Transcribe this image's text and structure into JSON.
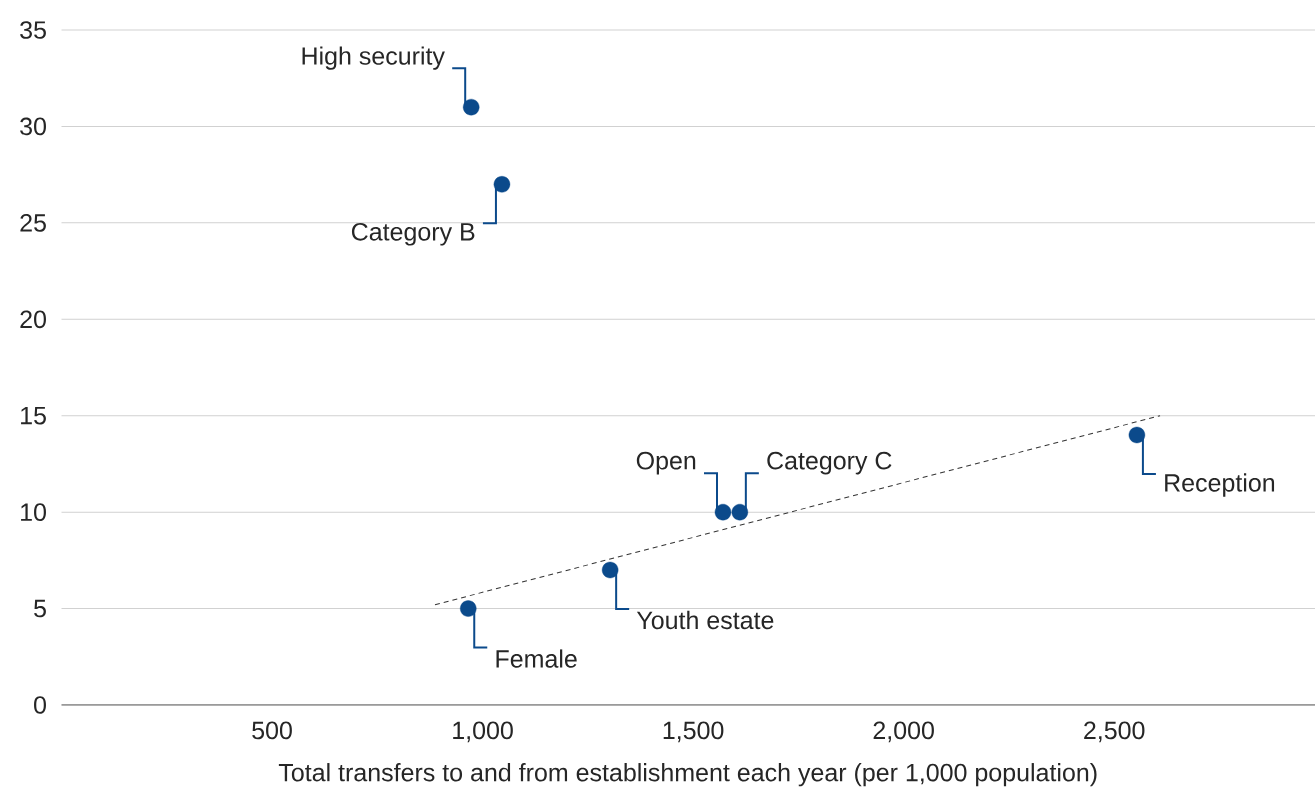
{
  "chart_data": {
    "type": "scatter",
    "xlabel": "Total transfers to and from establishment each year (per 1,000 population)",
    "grid": "y",
    "series": [
      {
        "color": "#0b4a8b",
        "marker": "circle",
        "x": [
          973,
          1046,
          966,
          1303,
          1571,
          1611,
          2554
        ],
        "values": [
          31,
          27,
          5,
          7,
          10,
          10,
          14
        ]
      },
      {
        "type": "line",
        "color": "#333333",
        "x": [
          887,
          2609
        ],
        "values": [
          5.2,
          15.0
        ],
        "line_style": "dashed",
        "marker": "none"
      }
    ],
    "xlim": [
      0,
      2977
    ],
    "ylim": [
      0,
      35
    ],
    "xticks": [
      {
        "value": 500,
        "label": "500"
      },
      {
        "value": 1000,
        "label": "1,000"
      },
      {
        "value": 1500,
        "label": "1,500"
      },
      {
        "value": 2000,
        "label": "2,000"
      },
      {
        "value": 2500,
        "label": "2,500"
      }
    ],
    "yticks": [
      0,
      5,
      10,
      15,
      20,
      25,
      30,
      35
    ],
    "annotations": [
      {
        "text": "High security",
        "x": 973,
        "y": 31
      },
      {
        "text": "Category B",
        "x": 1046,
        "y": 27
      },
      {
        "text": "Female",
        "x": 966,
        "y": 5
      },
      {
        "text": "Youth estate",
        "x": 1303,
        "y": 7
      },
      {
        "text": "Open",
        "x": 1571,
        "y": 10
      },
      {
        "text": "Category C",
        "x": 1611,
        "y": 10
      },
      {
        "text": "Reception",
        "x": 2554,
        "y": 14
      }
    ]
  }
}
